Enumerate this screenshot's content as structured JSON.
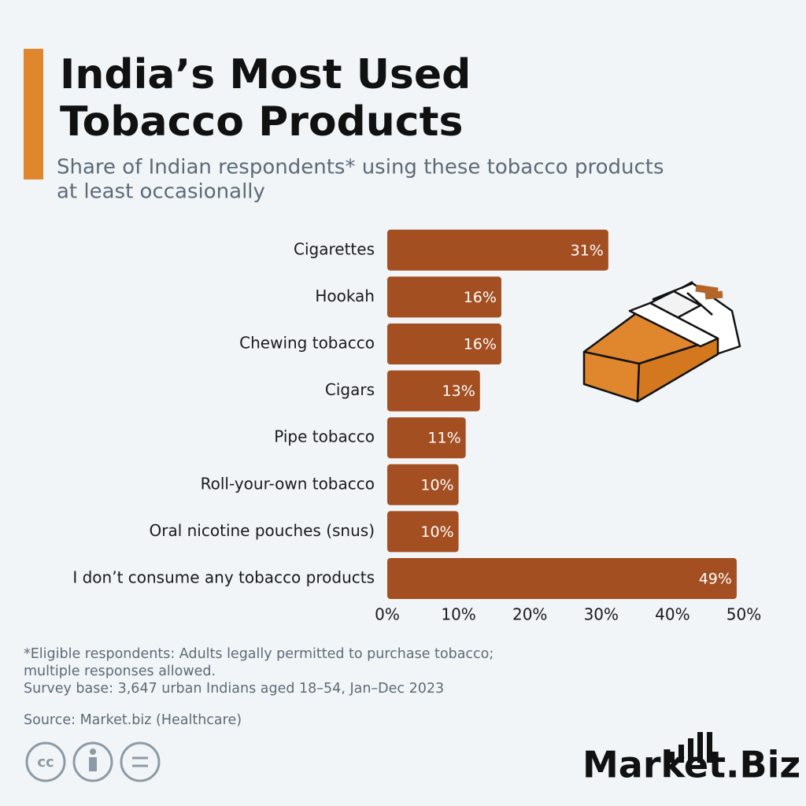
{
  "chart_data": {
    "type": "bar",
    "orientation": "horizontal",
    "title": [
      "India’s Most Used",
      "Tobacco Products"
    ],
    "subtitle": [
      "Share of Indian respondents* using these tobacco products",
      "at least occasionally"
    ],
    "categories": [
      "Cigarettes",
      "Hookah",
      "Chewing tobacco",
      "Cigars",
      "Pipe tobacco",
      "Roll-your-own tobacco",
      "Oral nicotine pouches (snus)",
      "I don’t consume any tobacco products"
    ],
    "values": [
      31,
      16,
      16,
      13,
      11,
      10,
      10,
      49
    ],
    "value_labels": [
      "31%",
      "16%",
      "16%",
      "13%",
      "11%",
      "10%",
      "10%",
      "49%"
    ],
    "color": "#a34f22",
    "xlim": [
      0,
      50
    ],
    "xticks": [
      {
        "value": 0,
        "label": "0%"
      },
      {
        "value": 10,
        "label": "10%"
      },
      {
        "value": 20,
        "label": "20%"
      },
      {
        "value": 30,
        "label": "30%"
      },
      {
        "value": 40,
        "label": "40%"
      },
      {
        "value": 50,
        "label": "50%"
      }
    ],
    "grid": false,
    "notes": [
      "*Eligible respondents: Adults legally permitted to purchase tobacco;",
      "multiple responses allowed.",
      "Survey base: 3,647 urban Indians aged 18–54, Jan–Dec 2023"
    ],
    "source": "Source: Market.biz (Healthcare)",
    "logo": "Market.Biz"
  }
}
